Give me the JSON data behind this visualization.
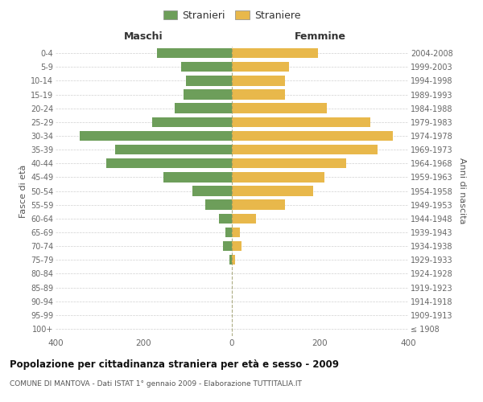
{
  "age_groups": [
    "100+",
    "95-99",
    "90-94",
    "85-89",
    "80-84",
    "75-79",
    "70-74",
    "65-69",
    "60-64",
    "55-59",
    "50-54",
    "45-49",
    "40-44",
    "35-39",
    "30-34",
    "25-29",
    "20-24",
    "15-19",
    "10-14",
    "5-9",
    "0-4"
  ],
  "birth_years": [
    "≤ 1908",
    "1909-1913",
    "1914-1918",
    "1919-1923",
    "1924-1928",
    "1929-1933",
    "1934-1938",
    "1939-1943",
    "1944-1948",
    "1949-1953",
    "1954-1958",
    "1959-1963",
    "1964-1968",
    "1969-1973",
    "1974-1978",
    "1979-1983",
    "1984-1988",
    "1989-1993",
    "1994-1998",
    "1999-2003",
    "2004-2008"
  ],
  "maschi": [
    0,
    0,
    0,
    0,
    0,
    5,
    20,
    15,
    30,
    60,
    90,
    155,
    285,
    265,
    345,
    180,
    130,
    110,
    105,
    115,
    170
  ],
  "femmine": [
    0,
    0,
    0,
    0,
    0,
    8,
    22,
    18,
    55,
    120,
    185,
    210,
    260,
    330,
    365,
    315,
    215,
    120,
    120,
    130,
    195
  ],
  "male_color": "#6d9e5a",
  "female_color": "#e8b84b",
  "title": "Popolazione per cittadinanza straniera per età e sesso - 2009",
  "subtitle": "COMUNE DI MANTOVA - Dati ISTAT 1° gennaio 2009 - Elaborazione TUTTITALIA.IT",
  "legend_male": "Stranieri",
  "legend_female": "Straniere",
  "label_maschi": "Maschi",
  "label_femmine": "Femmine",
  "ylabel_left": "Fasce di età",
  "ylabel_right": "Anni di nascita",
  "xlim": 400,
  "xticks": [
    -400,
    -200,
    0,
    200,
    400
  ],
  "xtick_labels": [
    "400",
    "200",
    "0",
    "200",
    "400"
  ],
  "background_color": "#ffffff",
  "grid_color": "#d0d0d0",
  "bar_height": 0.72,
  "dashed_color": "#999966"
}
